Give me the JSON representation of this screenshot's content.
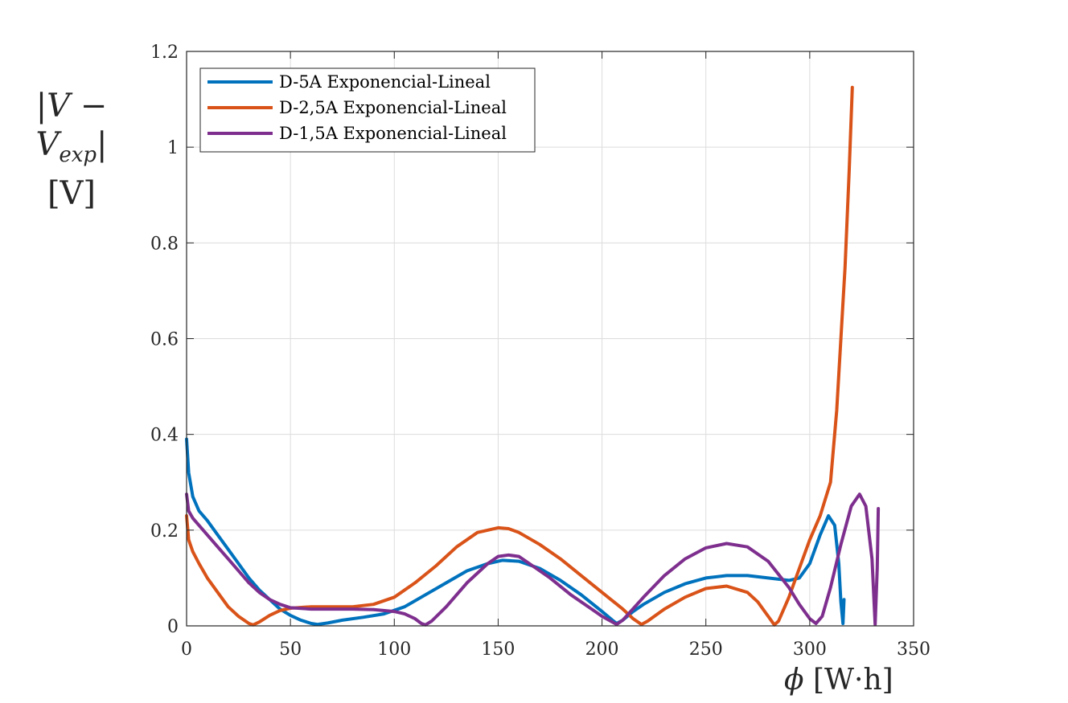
{
  "chart_data": {
    "type": "line",
    "title": "",
    "xlabel": "ϕ [W·h]",
    "ylabel_line1": "|V − Vexp|",
    "ylabel_line2": "[V]",
    "xlim": [
      0,
      350
    ],
    "ylim": [
      0,
      1.2
    ],
    "xticks": [
      "0",
      "50",
      "100",
      "150",
      "200",
      "250",
      "300",
      "350"
    ],
    "yticks": [
      "0",
      "0.2",
      "0.4",
      "0.6",
      "0.8",
      "1",
      "1.2"
    ],
    "grid": true,
    "legend_position": "top-left",
    "series": [
      {
        "name": "D-5A Exponencial-Lineal",
        "color": "#0072BD",
        "x": [
          0,
          1,
          3,
          6,
          10,
          15,
          20,
          25,
          30,
          35,
          40,
          45,
          50,
          55,
          60,
          63,
          68,
          75,
          85,
          95,
          105,
          115,
          125,
          135,
          145,
          152,
          160,
          170,
          180,
          190,
          200,
          205,
          207,
          210,
          215,
          220,
          230,
          240,
          250,
          260,
          270,
          280,
          290,
          295,
          300,
          305,
          309,
          312,
          314,
          315,
          316,
          316.5
        ],
        "y": [
          0.39,
          0.32,
          0.27,
          0.24,
          0.22,
          0.19,
          0.16,
          0.13,
          0.1,
          0.075,
          0.055,
          0.035,
          0.022,
          0.012,
          0.005,
          0.003,
          0.006,
          0.012,
          0.018,
          0.025,
          0.04,
          0.065,
          0.09,
          0.115,
          0.13,
          0.137,
          0.135,
          0.12,
          0.095,
          0.065,
          0.03,
          0.012,
          0.005,
          0.012,
          0.03,
          0.045,
          0.07,
          0.088,
          0.1,
          0.105,
          0.105,
          0.1,
          0.095,
          0.1,
          0.13,
          0.19,
          0.23,
          0.21,
          0.13,
          0.05,
          0.005,
          0.055
        ]
      },
      {
        "name": "D-2,5A Exponencial-Lineal",
        "color": "#D95319",
        "x": [
          0,
          1,
          3,
          6,
          10,
          15,
          20,
          25,
          30,
          32,
          35,
          40,
          45,
          50,
          60,
          70,
          80,
          90,
          100,
          110,
          120,
          130,
          140,
          150,
          155,
          160,
          170,
          180,
          190,
          200,
          210,
          215,
          219,
          222,
          230,
          240,
          250,
          260,
          270,
          275,
          280,
          283,
          285,
          290,
          295,
          300,
          305,
          310,
          313,
          315,
          317,
          319,
          320.5
        ],
        "y": [
          0.23,
          0.18,
          0.155,
          0.13,
          0.1,
          0.07,
          0.04,
          0.02,
          0.005,
          0.002,
          0.008,
          0.022,
          0.032,
          0.037,
          0.04,
          0.04,
          0.04,
          0.045,
          0.06,
          0.09,
          0.125,
          0.165,
          0.195,
          0.205,
          0.203,
          0.195,
          0.17,
          0.14,
          0.105,
          0.07,
          0.035,
          0.015,
          0.003,
          0.01,
          0.035,
          0.06,
          0.078,
          0.083,
          0.07,
          0.05,
          0.02,
          0.002,
          0.01,
          0.06,
          0.12,
          0.18,
          0.23,
          0.3,
          0.45,
          0.6,
          0.75,
          0.95,
          1.125
        ]
      },
      {
        "name": "D-1,5A Exponencial-Lineal",
        "color": "#7E2F8E",
        "x": [
          0,
          1,
          3,
          6,
          10,
          15,
          20,
          25,
          30,
          35,
          40,
          45,
          50,
          60,
          70,
          80,
          90,
          100,
          105,
          110,
          113,
          115,
          118,
          125,
          135,
          145,
          150,
          155,
          160,
          165,
          175,
          185,
          195,
          200,
          205,
          207,
          210,
          220,
          230,
          240,
          250,
          260,
          270,
          280,
          290,
          295,
          300,
          303,
          306,
          310,
          315,
          320,
          324,
          327,
          330,
          331.5,
          332.5,
          333
        ],
        "y": [
          0.275,
          0.24,
          0.225,
          0.21,
          0.19,
          0.165,
          0.14,
          0.115,
          0.09,
          0.07,
          0.055,
          0.045,
          0.038,
          0.035,
          0.035,
          0.035,
          0.034,
          0.03,
          0.025,
          0.015,
          0.005,
          0.002,
          0.01,
          0.04,
          0.09,
          0.13,
          0.145,
          0.148,
          0.145,
          0.13,
          0.1,
          0.065,
          0.035,
          0.02,
          0.008,
          0.003,
          0.012,
          0.06,
          0.105,
          0.14,
          0.163,
          0.172,
          0.165,
          0.135,
          0.08,
          0.045,
          0.015,
          0.005,
          0.02,
          0.08,
          0.17,
          0.25,
          0.275,
          0.25,
          0.14,
          0.003,
          0.12,
          0.245
        ]
      }
    ]
  }
}
